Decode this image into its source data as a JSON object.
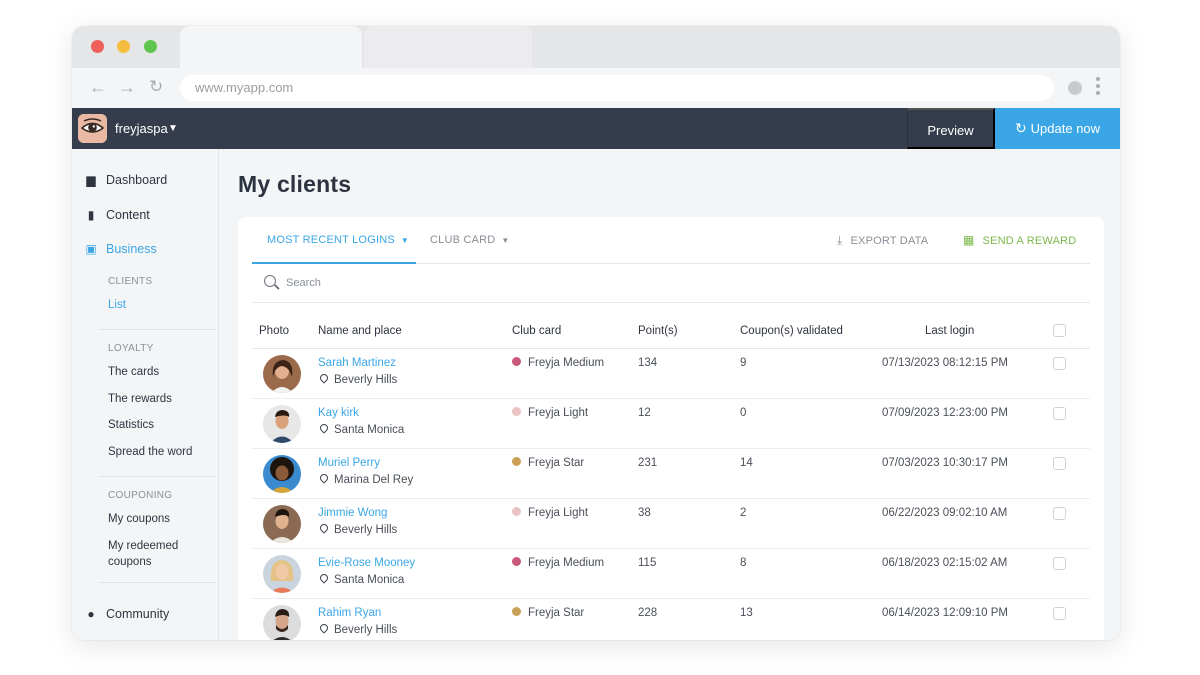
{
  "browser": {
    "url": "www.myapp.com"
  },
  "header": {
    "username": "freyjaspa",
    "preview_label": "Preview",
    "update_label": "Update now",
    "accent": "#3aa6e6",
    "bg": "#353d4c"
  },
  "sidebar": {
    "dashboard": "Dashboard",
    "content": "Content",
    "business": "Business",
    "clients_section": "CLIENTS",
    "list": "List",
    "loyalty_section": "LOYALTY",
    "the_cards": "The cards",
    "the_rewards": "The rewards",
    "statistics": "Statistics",
    "spread_the_word": "Spread the word",
    "couponing_section": "COUPONING",
    "my_coupons": "My coupons",
    "my_redeemed_line1": "My redeemed",
    "my_redeemed_line2": "coupons",
    "community": "Community"
  },
  "main": {
    "title": "My clients",
    "tab_recent": "MOST RECENT LOGINS",
    "tab_clubcard": "CLUB CARD",
    "export": "EXPORT DATA",
    "reward": "SEND A REWARD",
    "search_placeholder": "Search",
    "columns": {
      "photo": "Photo",
      "name": "Name and place",
      "club": "Club card",
      "points": "Point(s)",
      "coupons": "Coupon(s) validated",
      "last": "Last login"
    }
  },
  "clients": [
    {
      "name": "Sarah Martinez",
      "place": "Beverly Hills",
      "club": "Freyja Medium",
      "club_color": "#c9587a",
      "points": "134",
      "coupons": "9",
      "last": "07/13/2023 08:12:15 PM"
    },
    {
      "name": "Kay kirk",
      "place": "Santa Monica",
      "club": "Freyja Light",
      "club_color": "#ebc3c5",
      "points": "12",
      "coupons": "0",
      "last": "07/09/2023 12:23:00 PM"
    },
    {
      "name": "Muriel Perry",
      "place": "Marina Del Rey",
      "club": "Freyja Star",
      "club_color": "#c9a055",
      "points": "231",
      "coupons": "14",
      "last": "07/03/2023 10:30:17 PM"
    },
    {
      "name": "Jimmie Wong",
      "place": "Beverly Hills",
      "club": "Freyja Light",
      "club_color": "#ebc3c5",
      "points": "38",
      "coupons": "2",
      "last": "06/22/2023 09:02:10 AM"
    },
    {
      "name": "Evie-Rose Mooney",
      "place": "Santa Monica",
      "club": "Freyja Medium",
      "club_color": "#c9587a",
      "points": "115",
      "coupons": "8",
      "last": "06/18/2023 02:15:02 AM"
    },
    {
      "name": "Rahim Ryan",
      "place": "Beverly Hills",
      "club": "Freyja Star",
      "club_color": "#c9a055",
      "points": "228",
      "coupons": "13",
      "last": "06/14/2023 12:09:10 PM"
    }
  ]
}
